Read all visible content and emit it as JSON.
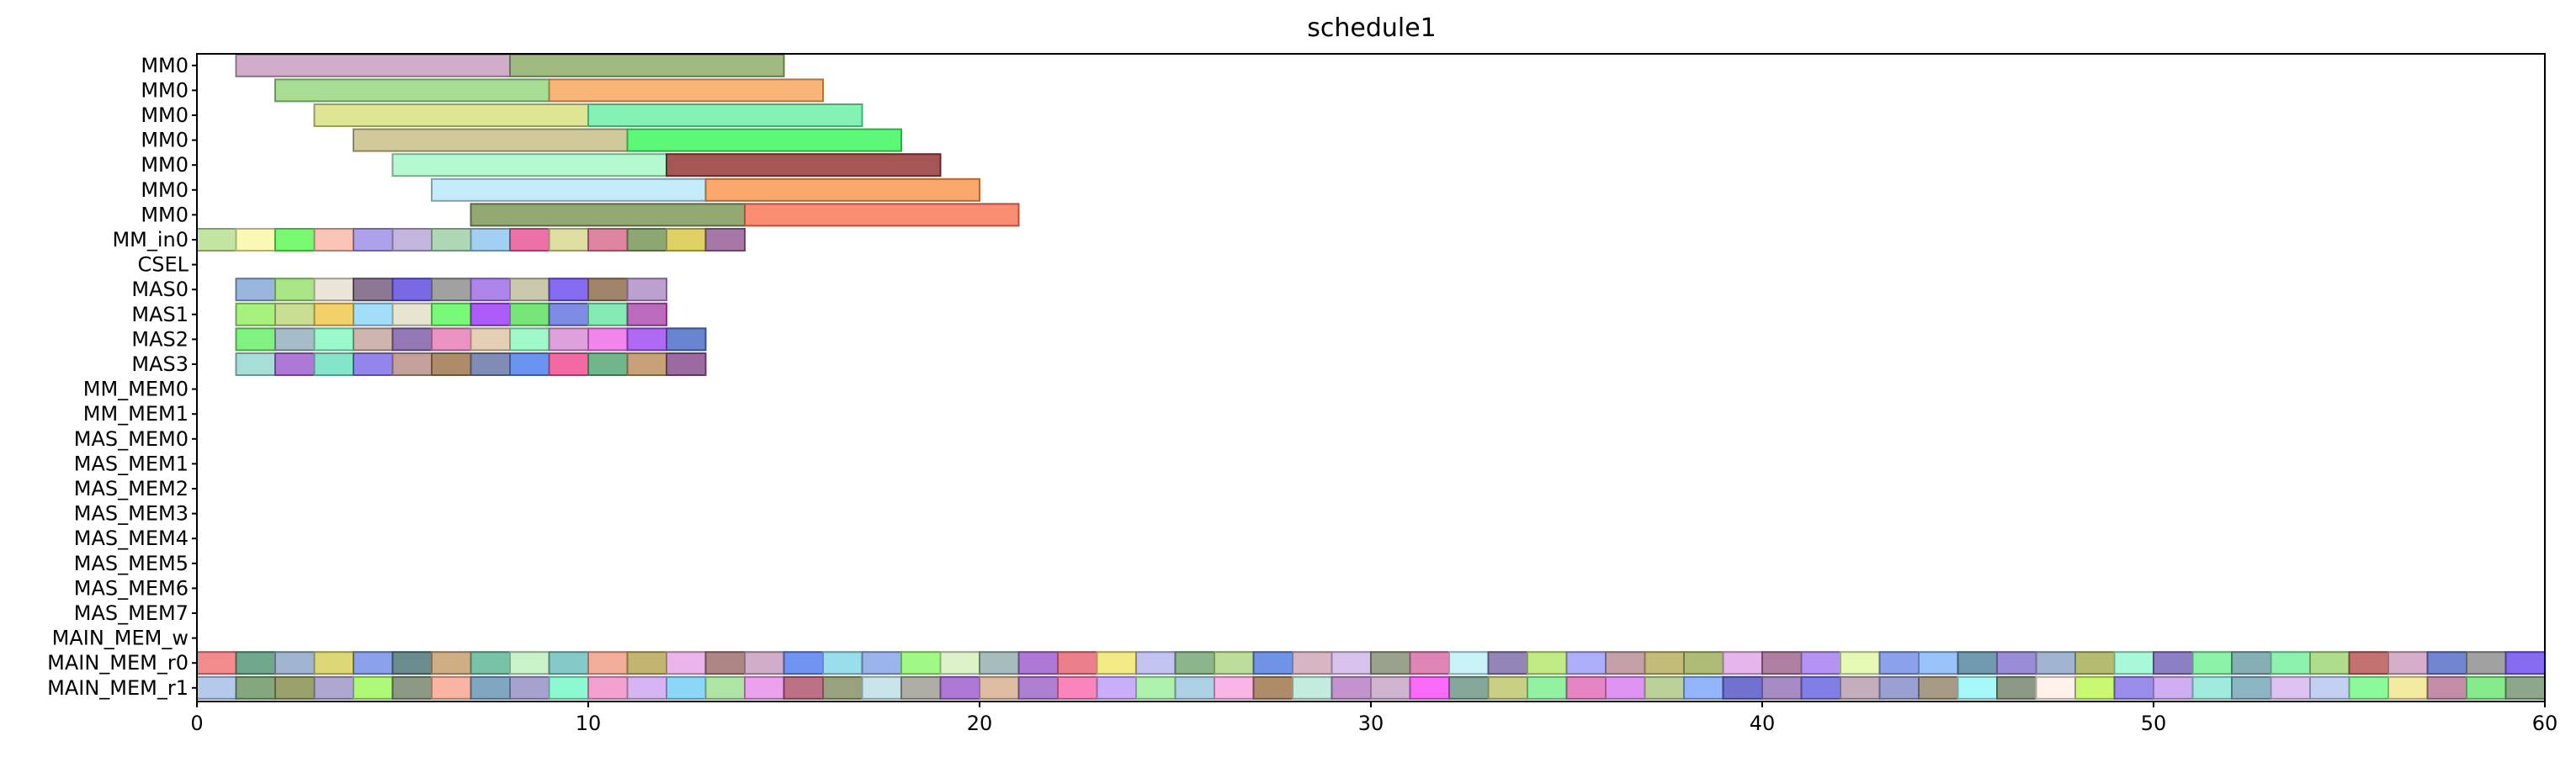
{
  "chart_data": {
    "type": "gantt",
    "title": "schedule1",
    "xlim": [
      0,
      60
    ],
    "xticks": [
      "0",
      "10",
      "20",
      "30",
      "40",
      "50",
      "60"
    ],
    "grid": false,
    "rows": [
      "MM0",
      "MM0",
      "MM0",
      "MM0",
      "MM0",
      "MM0",
      "MM0",
      "MM_in0",
      "CSEL",
      "MAS0",
      "MAS1",
      "MAS2",
      "MAS3",
      "MM_MEM0",
      "MM_MEM1",
      "MAS_MEM0",
      "MAS_MEM1",
      "MAS_MEM2",
      "MAS_MEM3",
      "MAS_MEM4",
      "MAS_MEM5",
      "MAS_MEM6",
      "MAS_MEM7",
      "MAIN_MEM_w",
      "MAIN_MEM_r0",
      "MAIN_MEM_r1"
    ],
    "bars": [
      {
        "row": 0,
        "start": 1,
        "end": 8,
        "color": "#c8a0c0"
      },
      {
        "row": 0,
        "start": 8,
        "end": 15,
        "color": "#8eaf6b"
      },
      {
        "row": 1,
        "start": 2,
        "end": 9,
        "color": "#98d880"
      },
      {
        "row": 1,
        "start": 9,
        "end": 16,
        "color": "#f8a860"
      },
      {
        "row": 2,
        "start": 3,
        "end": 10,
        "color": "#d8e080"
      },
      {
        "row": 2,
        "start": 10,
        "end": 17,
        "color": "#70f0a8"
      },
      {
        "row": 3,
        "start": 4,
        "end": 11,
        "color": "#c8c088"
      },
      {
        "row": 3,
        "start": 11,
        "end": 18,
        "color": "#40f860"
      },
      {
        "row": 4,
        "start": 5,
        "end": 12,
        "color": "#a8f8c8"
      },
      {
        "row": 4,
        "start": 12,
        "end": 19,
        "color": "#983838"
      },
      {
        "row": 5,
        "start": 6,
        "end": 13,
        "color": "#b8e8f8"
      },
      {
        "row": 5,
        "start": 13,
        "end": 20,
        "color": "#f89850"
      },
      {
        "row": 6,
        "start": 7,
        "end": 14,
        "color": "#809858"
      },
      {
        "row": 6,
        "start": 14,
        "end": 21,
        "color": "#f87858"
      },
      {
        "row": 7,
        "start": 0,
        "end": 1,
        "color": "#b8e090"
      },
      {
        "row": 7,
        "start": 1,
        "end": 2,
        "color": "#f8f8a8"
      },
      {
        "row": 7,
        "start": 2,
        "end": 3,
        "color": "#60f858"
      },
      {
        "row": 7,
        "start": 3,
        "end": 4,
        "color": "#f8b8a8"
      },
      {
        "row": 7,
        "start": 4,
        "end": 5,
        "color": "#a090e8"
      },
      {
        "row": 7,
        "start": 5,
        "end": 6,
        "color": "#b8a8d8"
      },
      {
        "row": 7,
        "start": 6,
        "end": 7,
        "color": "#a0d0a8"
      },
      {
        "row": 7,
        "start": 7,
        "end": 8,
        "color": "#90c8f0"
      },
      {
        "row": 7,
        "start": 8,
        "end": 9,
        "color": "#e85898"
      },
      {
        "row": 7,
        "start": 9,
        "end": 10,
        "color": "#d8d890"
      },
      {
        "row": 7,
        "start": 10,
        "end": 11,
        "color": "#d87090"
      },
      {
        "row": 7,
        "start": 11,
        "end": 12,
        "color": "#789858"
      },
      {
        "row": 7,
        "start": 12,
        "end": 13,
        "color": "#d8c848"
      },
      {
        "row": 7,
        "start": 13,
        "end": 14,
        "color": "#986098"
      },
      {
        "row": 9,
        "start": 1,
        "end": 2,
        "color": "#88a8d8"
      },
      {
        "row": 9,
        "start": 2,
        "end": 3,
        "color": "#98e070"
      },
      {
        "row": 9,
        "start": 3,
        "end": 4,
        "color": "#e8e0d0"
      },
      {
        "row": 9,
        "start": 4,
        "end": 5,
        "color": "#786080"
      },
      {
        "row": 9,
        "start": 5,
        "end": 6,
        "color": "#6050e0"
      },
      {
        "row": 9,
        "start": 6,
        "end": 7,
        "color": "#909090"
      },
      {
        "row": 9,
        "start": 7,
        "end": 8,
        "color": "#a070e8"
      },
      {
        "row": 9,
        "start": 8,
        "end": 9,
        "color": "#c0c0a0"
      },
      {
        "row": 9,
        "start": 9,
        "end": 10,
        "color": "#7050f0"
      },
      {
        "row": 9,
        "start": 10,
        "end": 11,
        "color": "#907050"
      },
      {
        "row": 9,
        "start": 11,
        "end": 12,
        "color": "#b090c8"
      },
      {
        "row": 10,
        "start": 1,
        "end": 2,
        "color": "#98f068"
      },
      {
        "row": 10,
        "start": 2,
        "end": 3,
        "color": "#c0d880"
      },
      {
        "row": 10,
        "start": 3,
        "end": 4,
        "color": "#f0c850"
      },
      {
        "row": 10,
        "start": 4,
        "end": 5,
        "color": "#90d8f8"
      },
      {
        "row": 10,
        "start": 5,
        "end": 6,
        "color": "#e0e0c8"
      },
      {
        "row": 10,
        "start": 6,
        "end": 7,
        "color": "#60f860"
      },
      {
        "row": 10,
        "start": 7,
        "end": 8,
        "color": "#a040f8"
      },
      {
        "row": 10,
        "start": 8,
        "end": 9,
        "color": "#60e060"
      },
      {
        "row": 10,
        "start": 9,
        "end": 10,
        "color": "#6878e0"
      },
      {
        "row": 10,
        "start": 10,
        "end": 11,
        "color": "#70e8a8"
      },
      {
        "row": 10,
        "start": 11,
        "end": 12,
        "color": "#b050b0"
      },
      {
        "row": 11,
        "start": 1,
        "end": 2,
        "color": "#68f068"
      },
      {
        "row": 11,
        "start": 2,
        "end": 3,
        "color": "#98b0c0"
      },
      {
        "row": 11,
        "start": 3,
        "end": 4,
        "color": "#88f8c0"
      },
      {
        "row": 11,
        "start": 4,
        "end": 5,
        "color": "#c8a8a0"
      },
      {
        "row": 11,
        "start": 5,
        "end": 6,
        "color": "#8060a8"
      },
      {
        "row": 11,
        "start": 6,
        "end": 7,
        "color": "#e880b8"
      },
      {
        "row": 11,
        "start": 7,
        "end": 8,
        "color": "#e0c8a8"
      },
      {
        "row": 11,
        "start": 8,
        "end": 9,
        "color": "#90f8c0"
      },
      {
        "row": 11,
        "start": 9,
        "end": 10,
        "color": "#d890d8"
      },
      {
        "row": 11,
        "start": 10,
        "end": 11,
        "color": "#f070e8"
      },
      {
        "row": 11,
        "start": 11,
        "end": 12,
        "color": "#a050f0"
      },
      {
        "row": 11,
        "start": 12,
        "end": 13,
        "color": "#5070c8"
      },
      {
        "row": 12,
        "start": 1,
        "end": 2,
        "color": "#98d8d0"
      },
      {
        "row": 12,
        "start": 2,
        "end": 3,
        "color": "#a060d0"
      },
      {
        "row": 12,
        "start": 3,
        "end": 4,
        "color": "#70e0c0"
      },
      {
        "row": 12,
        "start": 4,
        "end": 5,
        "color": "#8070e8"
      },
      {
        "row": 12,
        "start": 5,
        "end": 6,
        "color": "#b89088"
      },
      {
        "row": 12,
        "start": 6,
        "end": 7,
        "color": "#a07850"
      },
      {
        "row": 12,
        "start": 7,
        "end": 8,
        "color": "#6878a8"
      },
      {
        "row": 12,
        "start": 8,
        "end": 9,
        "color": "#5080f0"
      },
      {
        "row": 12,
        "start": 9,
        "end": 10,
        "color": "#f05090"
      },
      {
        "row": 12,
        "start": 10,
        "end": 11,
        "color": "#58a878"
      },
      {
        "row": 12,
        "start": 11,
        "end": 12,
        "color": "#c09060"
      },
      {
        "row": 12,
        "start": 12,
        "end": 13,
        "color": "#885090"
      }
    ],
    "memory_rows": [
      {
        "row": 24,
        "start": 0,
        "colors": [
          "#f07878",
          "#589878",
          "#90a8c8",
          "#d8d060",
          "#7890e8",
          "#507878",
          "#c8a070",
          "#60b898",
          "#c0f0c0",
          "#70c0c0",
          "#f0a088",
          "#b8a858",
          "#e8a8e8",
          "#a07070",
          "#c8a0c0",
          "#5880f0",
          "#88d8e8",
          "#88a8e8",
          "#90f870",
          "#d8f0c0",
          "#98b0b0",
          "#a060d0",
          "#e86878",
          "#f0e870",
          "#b8b8f0",
          "#78a878",
          "#b0d888",
          "#5880e0",
          "#d0a8b8",
          "#d0b8e8",
          "#889078",
          "#d870a8",
          "#c0f0f8",
          "#8070a8",
          "#b8e870",
          "#a0a0f8",
          "#b89098",
          "#b8b060",
          "#a0b060",
          "#e0a8e8",
          "#a06890",
          "#a880f0",
          "#e0f8a8",
          "#7890e8",
          "#88b8f8",
          "#5888a0",
          "#8878d0",
          "#90a8c8",
          "#a8b058",
          "#98f8d0",
          "#7868b8",
          "#78f098",
          "#70a0a8",
          "#78f0a0",
          "#a0d878",
          "#b85858",
          "#d0a0c0",
          "#5870c8",
          "#909090",
          "#7050f0"
        ]
      },
      {
        "row": 25,
        "start": 0,
        "colors": [
          "#a8c0e8",
          "#709868",
          "#889050",
          "#a098c8",
          "#a0f860",
          "#788870",
          "#f8a890",
          "#6898b8",
          "#9890c8",
          "#78f8c8",
          "#f090c8",
          "#d0a8f0",
          "#78d0f8",
          "#a0e098",
          "#e890e8",
          "#b05870",
          "#889068",
          "#c0e0e8",
          "#a0a098",
          "#a060d0",
          "#d8b090",
          "#a068c8",
          "#f870b0",
          "#c0a0f8",
          "#a0f0a0",
          "#a0c8e0",
          "#f8a8e0",
          "#a07850",
          "#b8e8d8",
          "#b880c8",
          "#c8a8c8",
          "#f850f8",
          "#709888",
          "#c0c870",
          "#80f090",
          "#e070b8",
          "#d880f0",
          "#b0c888",
          "#80a8f8",
          "#5858c8",
          "#9878b8",
          "#6868e0",
          "#b8a0b0",
          "#8890c8",
          "#988870",
          "#98f8f8",
          "#788870",
          "#fff0e8",
          "#c0f858",
          "#8878e8",
          "#c8a0f0",
          "#90e8d8",
          "#78a8b8",
          "#d8b8f0",
          "#b8c8f0",
          "#78f888",
          "#f0e890",
          "#b87898",
          "#70e878",
          "#789878"
        ]
      }
    ]
  }
}
